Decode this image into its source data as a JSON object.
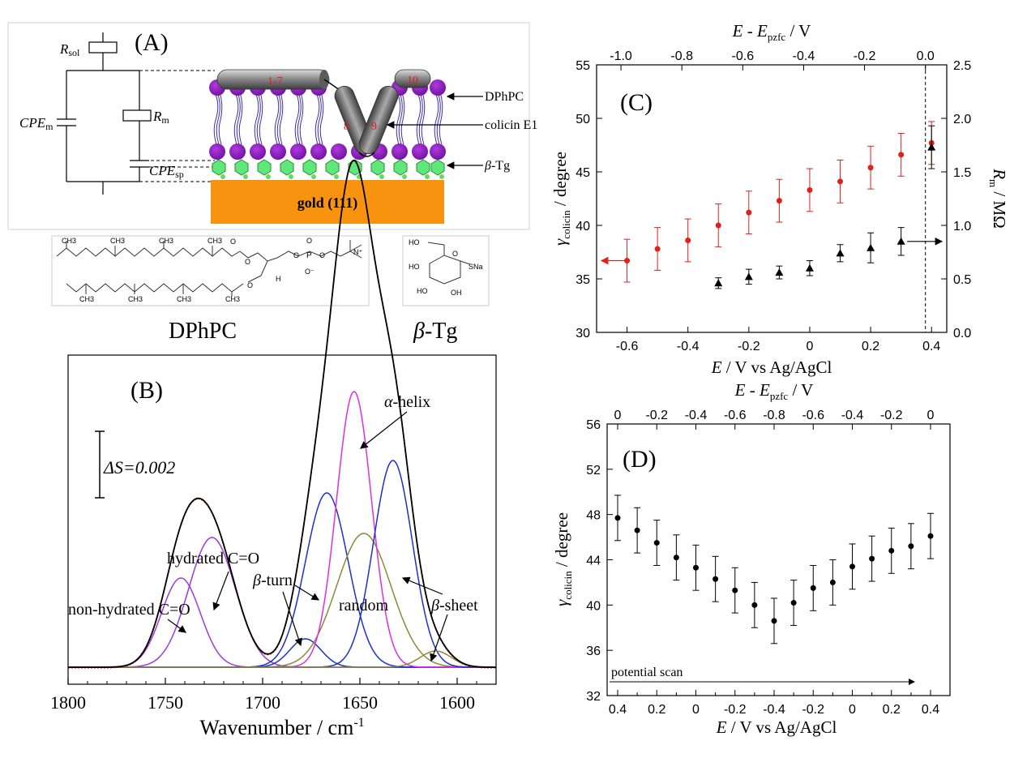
{
  "panel_labels": {
    "a": "(A)",
    "b": "(B)",
    "c": "(C)",
    "d": "(D)"
  },
  "panel_a": {
    "circuit": {
      "r_sol": "R",
      "r_sol_sub": "sol",
      "cpe_m": "CPE",
      "cpe_m_sub": "m",
      "r_m": "R",
      "r_m_sub": "m",
      "cpe_sp": "CPE",
      "cpe_sp_sub": "sp"
    },
    "helix_numbers": [
      "1-7",
      "8",
      "9",
      "10"
    ],
    "callouts": {
      "dphpc": "DPhPC",
      "colicin": "colicin E1",
      "beta_tg_greek": "β",
      "beta_tg_rest": "-Tg"
    },
    "gold": "gold (111)",
    "lipid_label": "DPhPC",
    "thioglucose_label_greek": "β",
    "thioglucose_label_rest": "-Tg",
    "structure_text": {
      "ch3": "CH3",
      "h": "H",
      "p": "P",
      "o": "O",
      "o_minus": "O⁻",
      "n_plus": "N⁺",
      "ho": "HO",
      "oh": "OH",
      "sna": "SNa"
    }
  },
  "colors": {
    "red_series": "#e0201b",
    "black_series": "#000000",
    "gold": "#f7930e",
    "lipid_head": "#8b16b8",
    "tail": "#3a2eb0",
    "tg": "#5fe87a",
    "helix": "#8a8a8a",
    "magenta": "#e12de0",
    "blue": "#1b2fd2",
    "olive": "#8a8a36",
    "violet": "#9a3ae0"
  },
  "chart_data": [
    {
      "panel": "B",
      "type": "line",
      "xlabel": "Wavenumber / cm",
      "xlabel_sup": "-1",
      "xlim": [
        1800,
        1580
      ],
      "x_ticks": [
        1800,
        1750,
        1700,
        1650,
        1600
      ],
      "scale_bar": "ΔS=0.002",
      "scale_bar_value": 0.002,
      "series": [
        {
          "label": "non-hydrated C=O",
          "center": 1742,
          "amplitude": 0.0022,
          "width": 10
        },
        {
          "label": "hydrated C=O",
          "center": 1726,
          "amplitude": 0.0032,
          "width": 12
        },
        {
          "label": "β-turn",
          "center": 1678,
          "amplitude": 0.0007,
          "width": 8
        },
        {
          "label": "β-turn",
          "center": 1667,
          "amplitude": 0.0043,
          "width": 11
        },
        {
          "label": "random",
          "center": 1648,
          "amplitude": 0.0033,
          "width": 14
        },
        {
          "label": "α-helix",
          "center": 1653,
          "amplitude": 0.0068,
          "width": 9
        },
        {
          "label": "β-sheet",
          "center": 1633,
          "amplitude": 0.0051,
          "width": 10
        },
        {
          "label": "β-sheet",
          "center": 1611,
          "amplitude": 0.0004,
          "width": 8
        }
      ],
      "annotations": [
        "non-hydrated C=O",
        "hydrated C=O",
        "β-turn",
        "random",
        "α-helix",
        "β-sheet"
      ]
    },
    {
      "panel": "C",
      "type": "scatter",
      "xlabel": "E / V vs Ag/AgCl",
      "ylabel_left": "γcolicin / degree",
      "ylabel_right": "Rm / MΩ",
      "top_axis_label": "E - Epzfc / V",
      "xlim": [
        -0.7,
        0.45
      ],
      "ylim": [
        30,
        55
      ],
      "ylim_right": [
        0,
        2.5
      ],
      "x_ticks": [
        -0.6,
        -0.4,
        -0.2,
        0,
        0.2,
        0.4
      ],
      "y_ticks": [
        30,
        35,
        40,
        45,
        50,
        55
      ],
      "y_ticks_right": [
        0.0,
        0.5,
        1.0,
        1.5,
        2.0,
        2.5
      ],
      "top_ticks": [
        -1.0,
        -0.8,
        -0.6,
        -0.4,
        -0.2,
        0.0
      ],
      "e_pzfc": 0.38,
      "series": [
        {
          "name": "γcolicin",
          "axis": "left",
          "marker": "circle",
          "x": [
            -0.6,
            -0.5,
            -0.4,
            -0.3,
            -0.2,
            -0.1,
            0.0,
            0.1,
            0.2,
            0.3,
            0.4
          ],
          "y": [
            36.7,
            37.8,
            38.6,
            40.0,
            41.2,
            42.3,
            43.3,
            44.1,
            45.4,
            46.6,
            47.7
          ],
          "err": [
            2.0,
            2.0,
            2.0,
            2.0,
            2.0,
            2.0,
            2.0,
            2.0,
            2.0,
            2.0,
            2.0
          ]
        },
        {
          "name": "Rm",
          "axis": "right",
          "marker": "triangle",
          "x": [
            -0.3,
            -0.2,
            -0.1,
            0.0,
            0.1,
            0.2,
            0.3,
            0.4
          ],
          "y": [
            0.46,
            0.52,
            0.56,
            0.6,
            0.74,
            0.79,
            0.85,
            1.73
          ],
          "err": [
            0.05,
            0.07,
            0.06,
            0.07,
            0.08,
            0.14,
            0.13,
            0.2
          ]
        }
      ]
    },
    {
      "panel": "D",
      "type": "scatter",
      "xlabel": "E / V vs Ag/AgCl",
      "ylabel": "γcolicin / degree",
      "top_axis_label": "E - Epzfc / V",
      "ylim": [
        32,
        56
      ],
      "x_ticks": [
        "0.4",
        "0.2",
        "0",
        "-0.2",
        "-0.4",
        "-0.2",
        "0",
        "0.2",
        "0.4"
      ],
      "top_ticks": [
        "0",
        "-0.2",
        "-0.4",
        "-0.6",
        "-0.8",
        "-0.6",
        "-0.4",
        "-0.2",
        "0"
      ],
      "y_ticks": [
        32,
        36,
        40,
        44,
        48,
        52,
        56
      ],
      "scan_label": "potential scan",
      "series": [
        {
          "name": "γcolicin",
          "x": [
            0.4,
            0.3,
            0.2,
            0.1,
            0.0,
            -0.1,
            -0.2,
            -0.3,
            -0.4,
            -0.3,
            -0.2,
            -0.1,
            0.0,
            0.1,
            0.2,
            0.3,
            0.4
          ],
          "y": [
            47.7,
            46.6,
            45.5,
            44.2,
            43.3,
            42.3,
            41.3,
            40.0,
            38.6,
            40.2,
            41.5,
            42.0,
            43.4,
            44.1,
            44.8,
            45.2,
            46.1
          ],
          "err": [
            2.0,
            2.0,
            2.0,
            2.0,
            2.0,
            2.0,
            2.0,
            2.0,
            2.0,
            2.0,
            2.0,
            2.0,
            2.0,
            2.0,
            2.0,
            2.0,
            2.0
          ]
        }
      ]
    }
  ]
}
